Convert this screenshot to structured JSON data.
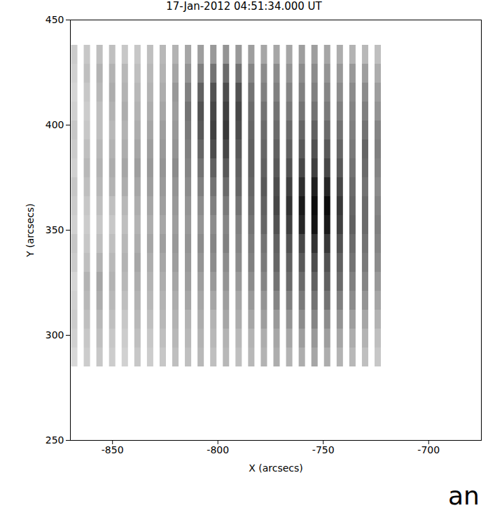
{
  "chart_data": {
    "type": "heatmap",
    "title": "17-Jan-2012 04:51:34.000 UT",
    "xlabel": "X (arcsecs)",
    "ylabel": "Y (arcsecs)",
    "xlim": [
      -870,
      -675
    ],
    "ylim": [
      250,
      450
    ],
    "xticks": [
      -850,
      -800,
      -750,
      -700
    ],
    "yticks": [
      250,
      300,
      350,
      400,
      450
    ],
    "zlim": [
      0,
      100
    ],
    "strip_width": 3,
    "x": [
      -868,
      -862,
      -856,
      -850,
      -844,
      -838,
      -832,
      -826,
      -820,
      -814,
      -808,
      -802,
      -796,
      -790,
      -784,
      -778,
      -772,
      -766,
      -760,
      -754,
      -748,
      -742,
      -736,
      -730,
      -724
    ],
    "y_edges": [
      285,
      294,
      303,
      312,
      321,
      330,
      339,
      348,
      357,
      366,
      375,
      384,
      393,
      402,
      411,
      420,
      429,
      438
    ],
    "values": [
      [
        15,
        18,
        20,
        18,
        16,
        20,
        22,
        18,
        20,
        22,
        18,
        20,
        22,
        18,
        16,
        18,
        20
      ],
      [
        20,
        22,
        25,
        28,
        30,
        25,
        22,
        20,
        22,
        25,
        28,
        25,
        22,
        20,
        22,
        25,
        22
      ],
      [
        22,
        25,
        28,
        32,
        35,
        30,
        25,
        22,
        25,
        28,
        30,
        28,
        25,
        25,
        28,
        30,
        25
      ],
      [
        20,
        22,
        25,
        28,
        30,
        28,
        25,
        22,
        25,
        30,
        32,
        30,
        28,
        30,
        32,
        30,
        25
      ],
      [
        18,
        20,
        22,
        25,
        28,
        30,
        28,
        25,
        28,
        32,
        35,
        32,
        30,
        32,
        30,
        28,
        22
      ],
      [
        22,
        25,
        28,
        30,
        32,
        35,
        32,
        30,
        32,
        35,
        38,
        35,
        32,
        30,
        28,
        25,
        22
      ],
      [
        20,
        22,
        25,
        28,
        30,
        32,
        35,
        32,
        35,
        38,
        40,
        38,
        35,
        32,
        30,
        28,
        25
      ],
      [
        22,
        25,
        28,
        30,
        32,
        35,
        38,
        35,
        38,
        40,
        42,
        40,
        38,
        35,
        32,
        30,
        28
      ],
      [
        25,
        28,
        30,
        32,
        35,
        38,
        40,
        38,
        40,
        42,
        45,
        42,
        40,
        38,
        40,
        35,
        30
      ],
      [
        25,
        28,
        30,
        35,
        38,
        40,
        42,
        40,
        42,
        45,
        48,
        50,
        52,
        55,
        50,
        42,
        35
      ],
      [
        28,
        30,
        32,
        35,
        38,
        42,
        45,
        42,
        45,
        50,
        55,
        60,
        65,
        68,
        62,
        50,
        38
      ],
      [
        25,
        28,
        30,
        35,
        40,
        45,
        48,
        45,
        50,
        55,
        62,
        70,
        75,
        72,
        68,
        55,
        40
      ],
      [
        28,
        30,
        35,
        38,
        42,
        45,
        50,
        48,
        52,
        58,
        65,
        72,
        78,
        75,
        70,
        58,
        42
      ],
      [
        25,
        28,
        32,
        35,
        40,
        45,
        48,
        50,
        55,
        60,
        62,
        65,
        70,
        72,
        68,
        55,
        40
      ],
      [
        28,
        30,
        35,
        40,
        45,
        50,
        52,
        55,
        58,
        60,
        62,
        62,
        60,
        58,
        55,
        48,
        38
      ],
      [
        30,
        32,
        38,
        42,
        48,
        52,
        55,
        60,
        62,
        65,
        62,
        60,
        58,
        55,
        50,
        45,
        35
      ],
      [
        32,
        35,
        40,
        48,
        55,
        60,
        62,
        68,
        72,
        70,
        65,
        62,
        58,
        55,
        50,
        45,
        35
      ],
      [
        30,
        35,
        42,
        50,
        58,
        62,
        68,
        75,
        80,
        75,
        68,
        62,
        58,
        52,
        48,
        42,
        35
      ],
      [
        32,
        38,
        45,
        52,
        58,
        65,
        72,
        85,
        90,
        82,
        72,
        65,
        60,
        55,
        50,
        45,
        38
      ],
      [
        35,
        40,
        48,
        55,
        62,
        70,
        80,
        92,
        95,
        88,
        75,
        68,
        62,
        55,
        50,
        45,
        38
      ],
      [
        32,
        38,
        45,
        55,
        62,
        68,
        78,
        90,
        95,
        85,
        72,
        65,
        58,
        52,
        48,
        42,
        35
      ],
      [
        30,
        35,
        42,
        50,
        58,
        62,
        68,
        75,
        78,
        72,
        65,
        60,
        55,
        50,
        45,
        40,
        32
      ],
      [
        28,
        32,
        38,
        45,
        50,
        55,
        58,
        62,
        60,
        58,
        55,
        52,
        50,
        48,
        45,
        40,
        30
      ],
      [
        25,
        30,
        35,
        42,
        48,
        52,
        55,
        58,
        58,
        55,
        58,
        60,
        55,
        50,
        45,
        38,
        28
      ],
      [
        22,
        25,
        30,
        35,
        40,
        45,
        48,
        50,
        48,
        45,
        48,
        50,
        48,
        42,
        38,
        32,
        25
      ]
    ],
    "annotations": [
      "an"
    ]
  }
}
